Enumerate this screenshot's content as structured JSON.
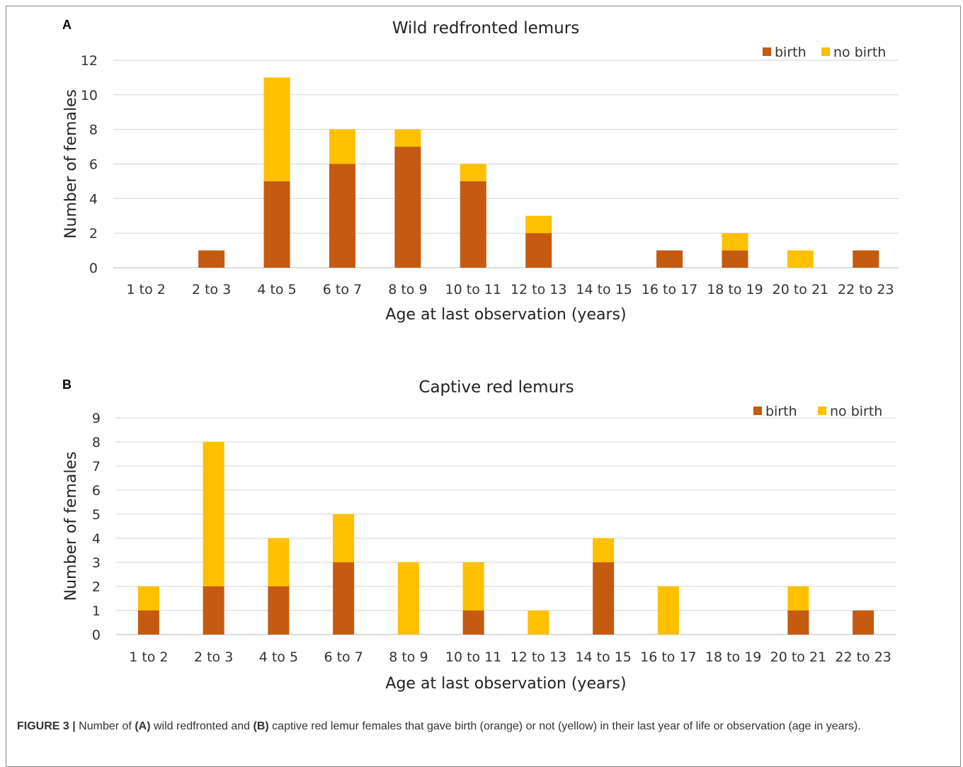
{
  "chart_data": [
    {
      "panel_letter": "A",
      "type": "bar",
      "stacked": true,
      "title": "Wild redfronted lemurs",
      "xlabel": "Age at last observation (years)",
      "ylabel": "Number of females",
      "ylim": [
        0,
        12
      ],
      "yticks": [
        0,
        2,
        4,
        6,
        8,
        10,
        12
      ],
      "grid": true,
      "legend_position": "top-right",
      "categories": [
        "1 to 2",
        "2 to 3",
        "4 to 5",
        "6 to 7",
        "8 to 9",
        "10 to 11",
        "12 to 13",
        "14 to 15",
        "16 to 17",
        "18 to 19",
        "20 to 21",
        "22 to 23"
      ],
      "series": [
        {
          "name": "birth",
          "color": "#c55a11",
          "values": [
            0,
            1,
            5,
            6,
            7,
            5,
            2,
            0,
            1,
            1,
            0,
            1
          ]
        },
        {
          "name": "no birth",
          "color": "#ffc000",
          "values": [
            0,
            0,
            6,
            2,
            1,
            1,
            1,
            0,
            0,
            1,
            1,
            0
          ]
        }
      ]
    },
    {
      "panel_letter": "B",
      "type": "bar",
      "stacked": true,
      "title": "Captive red lemurs",
      "xlabel": "Age at last observation (years)",
      "ylabel": "Number of females",
      "ylim": [
        0,
        9
      ],
      "yticks": [
        0,
        1,
        2,
        3,
        4,
        5,
        6,
        7,
        8,
        9
      ],
      "grid": true,
      "legend_position": "top-right",
      "categories": [
        "1 to 2",
        "2 to 3",
        "4 to 5",
        "6 to 7",
        "8 to 9",
        "10 to 11",
        "12 to 13",
        "14 to 15",
        "16 to 17",
        "18 to 19",
        "20 to 21",
        "22 to 23"
      ],
      "series": [
        {
          "name": "birth",
          "color": "#c55a11",
          "values": [
            1,
            2,
            2,
            3,
            0,
            1,
            0,
            3,
            0,
            0,
            1,
            1
          ]
        },
        {
          "name": "no birth",
          "color": "#ffc000",
          "values": [
            1,
            6,
            2,
            2,
            3,
            2,
            1,
            1,
            2,
            0,
            1,
            0
          ]
        }
      ]
    }
  ],
  "caption": {
    "figure_label": "FIGURE 3 |",
    "t1": " Number of ",
    "b1": "(A)",
    "t2": " wild redfronted and ",
    "b2": "(B)",
    "t3": " captive red lemur females that gave birth (orange) or not (yellow) in their last year of life or observation (age in years)."
  }
}
